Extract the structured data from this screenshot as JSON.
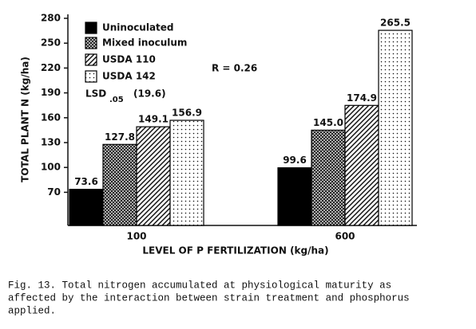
{
  "chart_data": {
    "type": "bar",
    "categories": [
      "100",
      "600"
    ],
    "series": [
      {
        "name": "Uninoculated",
        "color": "#000000",
        "fill": "solid",
        "values": [
          73.6,
          99.6
        ],
        "value_labels": [
          "73.6",
          "99.6"
        ]
      },
      {
        "name": "Mixed inoculum",
        "color": "#000000",
        "fill": "crosshatch",
        "values": [
          127.8,
          145.0
        ],
        "value_labels": [
          "127.8",
          "145.0"
        ]
      },
      {
        "name": "USDA 110",
        "color": "#000000",
        "fill": "hatch",
        "values": [
          149.1,
          174.9
        ],
        "value_labels": [
          "149.1",
          "174.9"
        ]
      },
      {
        "name": "USDA 142",
        "color": "#000000",
        "fill": "dots",
        "values": [
          156.9,
          265.5
        ],
        "value_labels": [
          "156.9",
          "265.5"
        ]
      }
    ],
    "ylim": [
      30,
      280
    ],
    "yticks": [
      70,
      100,
      130,
      160,
      190,
      220,
      250,
      280
    ],
    "y_label": "TOTAL PLANT N (kg/ha)",
    "x_label": "LEVEL OF P FERTILIZATION (kg/ha)",
    "annotations": {
      "r": "R = 0.26",
      "lsd": "LSD",
      "lsd_sub": ".05",
      "lsd_value": "(19.6)"
    },
    "caption_lines": [
      "Fig. 13.  Total nitrogen accumulated at physiological maturity as",
      "affected by the interaction between strain treatment and phosphorus",
      "applied."
    ]
  }
}
